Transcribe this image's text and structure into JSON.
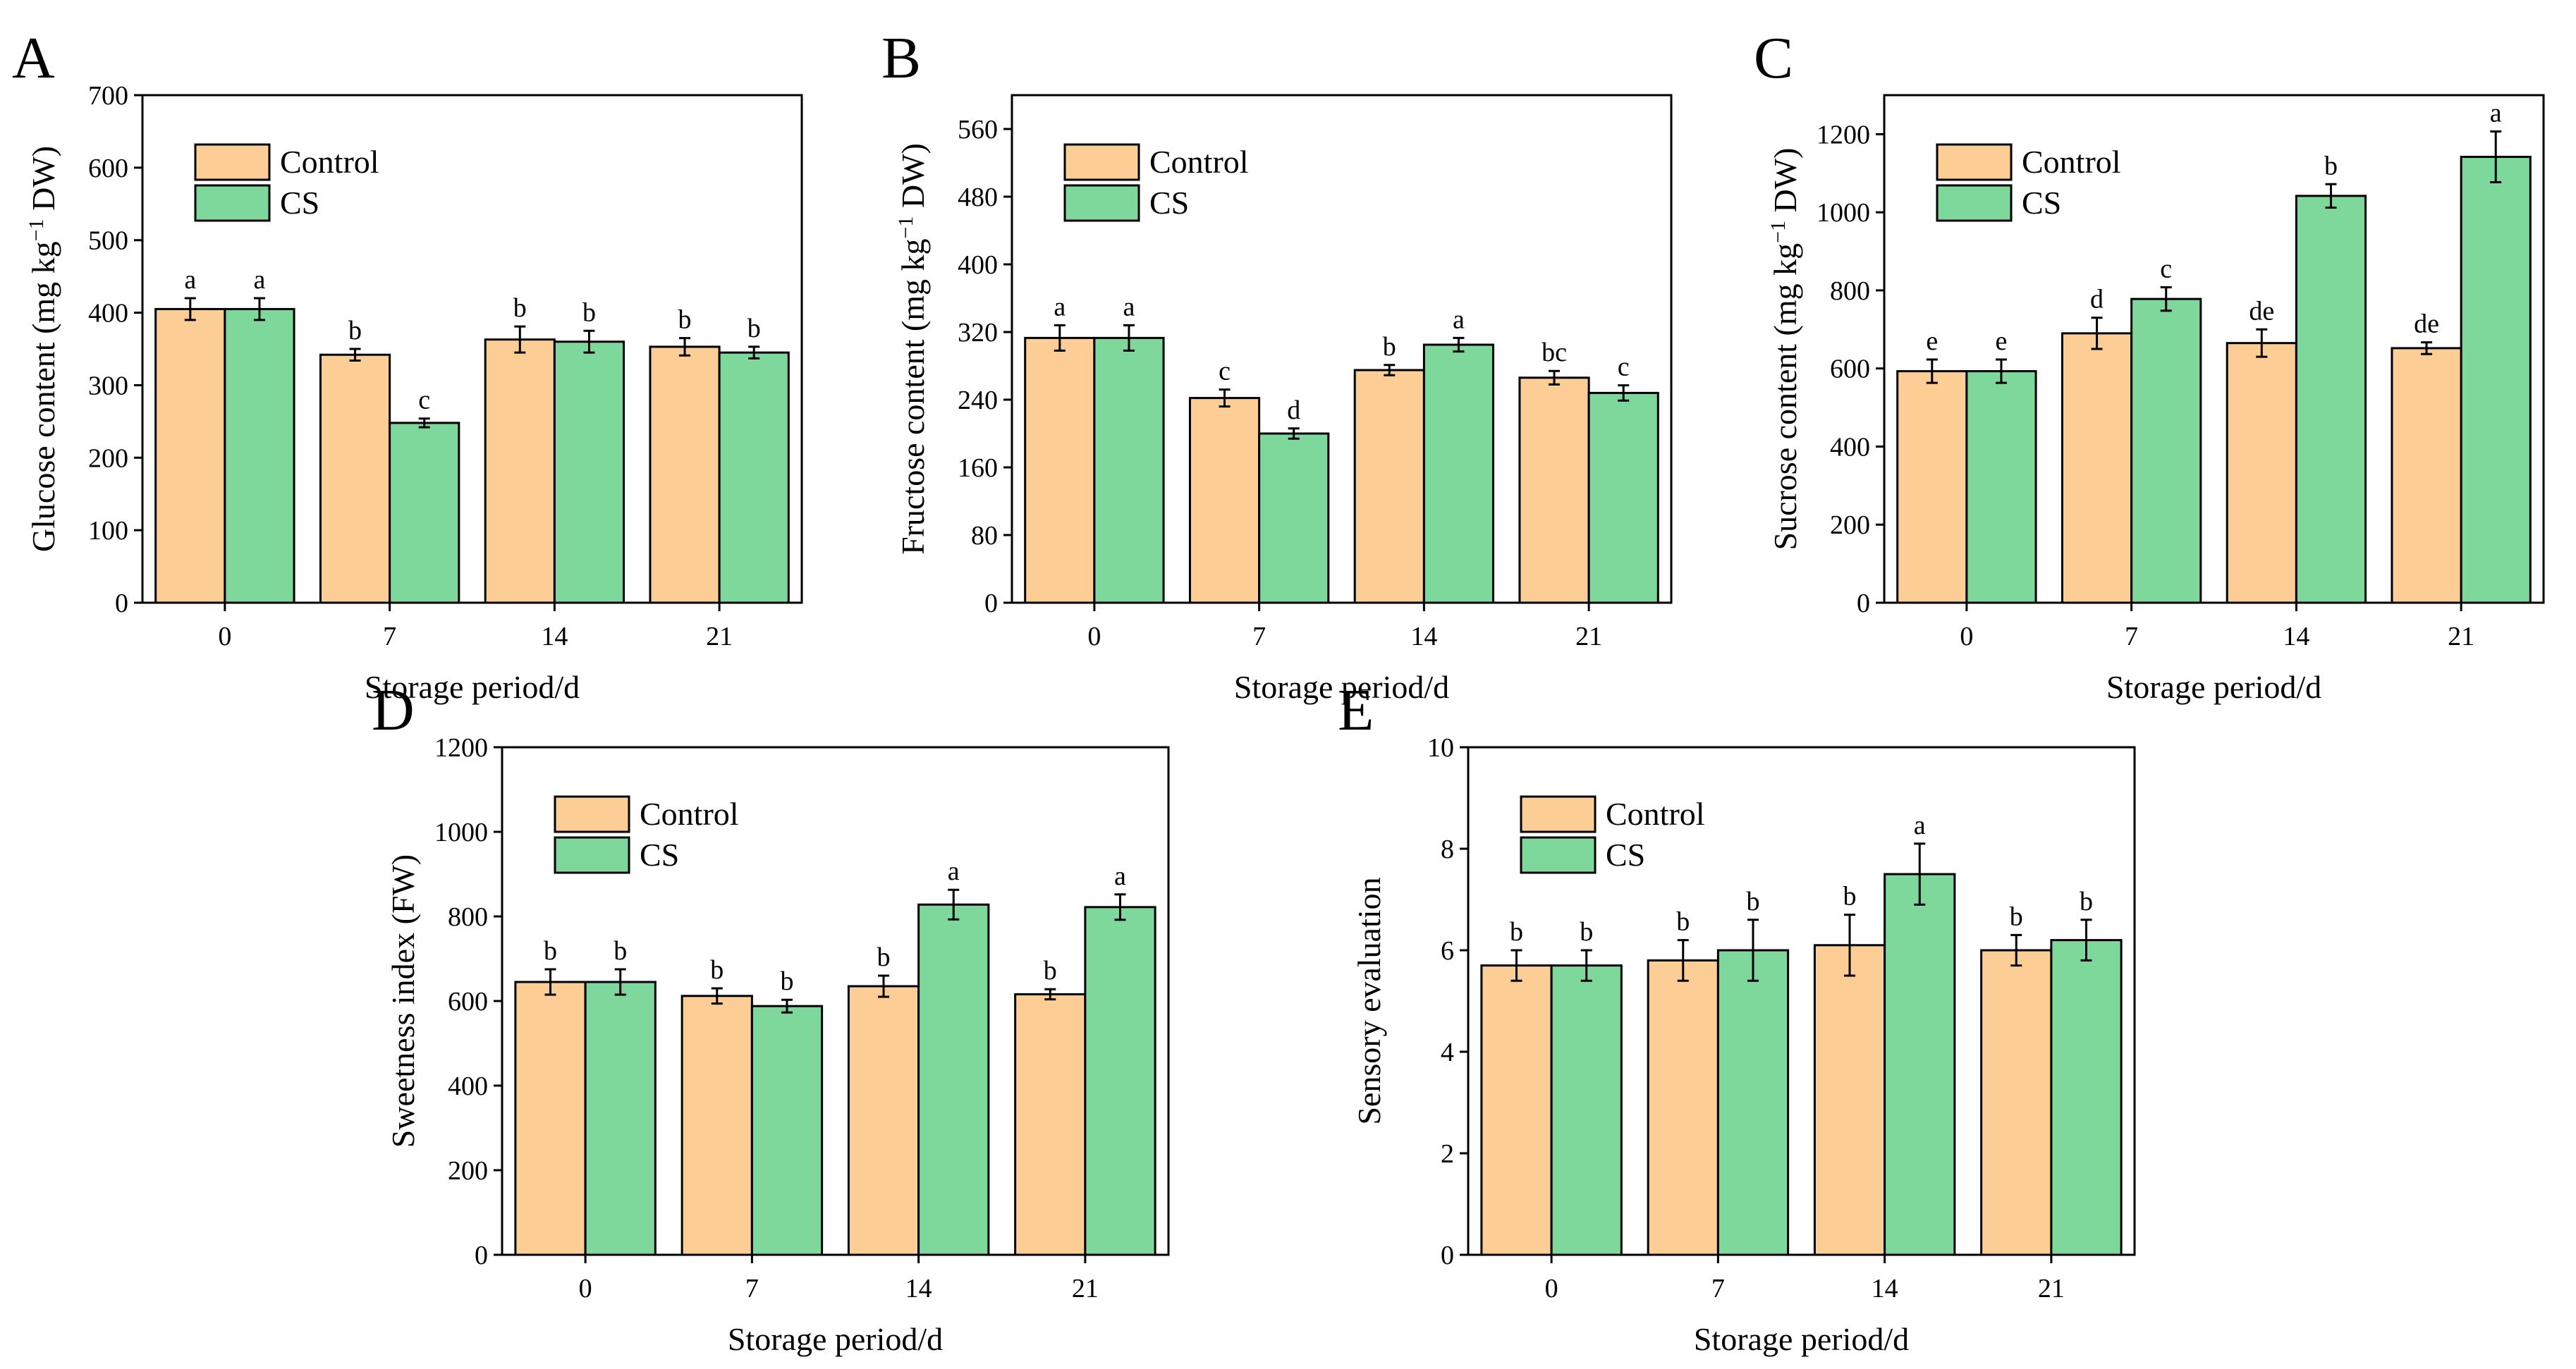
{
  "figure": {
    "series_colors": {
      "Control": "#FDCD96",
      "CS": "#7ED89C"
    },
    "stroke_color": "#000000"
  },
  "chart_data": [
    {
      "panel": "A",
      "type": "bar",
      "xlabel": "Storage period/d",
      "ylabel_prefix": "Glucose content (mg kg",
      "ylabel_sup": "−1",
      "ylabel_suffix": " DW)",
      "categories": [
        "0",
        "7",
        "14",
        "21"
      ],
      "ylim": [
        0,
        700
      ],
      "yticks": [
        0,
        100,
        200,
        300,
        400,
        500,
        600,
        700
      ],
      "legend_position": "top-left",
      "series": [
        {
          "name": "Control",
          "values": [
            405,
            342,
            363,
            353
          ],
          "errors": [
            15,
            8,
            18,
            12
          ],
          "letters": [
            "a",
            "b",
            "b",
            "b"
          ]
        },
        {
          "name": "CS",
          "values": [
            405,
            248,
            360,
            345
          ],
          "errors": [
            15,
            6,
            15,
            8
          ],
          "letters": [
            "a",
            "c",
            "b",
            "b"
          ]
        }
      ]
    },
    {
      "panel": "B",
      "type": "bar",
      "xlabel": "Storage period/d",
      "ylabel_prefix": "Fructose content (mg kg",
      "ylabel_sup": "−1",
      "ylabel_suffix": " DW)",
      "categories": [
        "0",
        "7",
        "14",
        "21"
      ],
      "ylim": [
        0,
        600
      ],
      "yticks": [
        0,
        80,
        160,
        240,
        320,
        400,
        480,
        560
      ],
      "legend_position": "top-left",
      "series": [
        {
          "name": "Control",
          "values": [
            313,
            242,
            275,
            266
          ],
          "errors": [
            15,
            10,
            6,
            8
          ],
          "letters": [
            "a",
            "c",
            "b",
            "bc"
          ]
        },
        {
          "name": "CS",
          "values": [
            313,
            200,
            305,
            248
          ],
          "errors": [
            15,
            6,
            8,
            9
          ],
          "letters": [
            "a",
            "d",
            "a",
            "c"
          ]
        }
      ]
    },
    {
      "panel": "C",
      "type": "bar",
      "xlabel": "Storage period/d",
      "ylabel_prefix": "Sucrose content (mg kg",
      "ylabel_sup": "−1",
      "ylabel_suffix": " DW)",
      "categories": [
        "0",
        "7",
        "14",
        "21"
      ],
      "ylim": [
        0,
        1300
      ],
      "yticks": [
        0,
        200,
        400,
        600,
        800,
        1000,
        1200
      ],
      "legend_position": "top-left",
      "series": [
        {
          "name": "Control",
          "values": [
            593,
            690,
            665,
            652
          ],
          "errors": [
            30,
            40,
            35,
            15
          ],
          "letters": [
            "e",
            "d",
            "de",
            "de"
          ]
        },
        {
          "name": "CS",
          "values": [
            593,
            778,
            1042,
            1142
          ],
          "errors": [
            30,
            30,
            30,
            65
          ],
          "letters": [
            "e",
            "c",
            "b",
            "a"
          ]
        }
      ]
    },
    {
      "panel": "D",
      "type": "bar",
      "xlabel": "Storage period/d",
      "ylabel": "Sweetness index (FW)",
      "categories": [
        "0",
        "7",
        "14",
        "21"
      ],
      "ylim": [
        0,
        1200
      ],
      "yticks": [
        0,
        200,
        400,
        600,
        800,
        1000,
        1200
      ],
      "legend_position": "top-left",
      "series": [
        {
          "name": "Control",
          "values": [
            645,
            612,
            635,
            616
          ],
          "errors": [
            30,
            18,
            25,
            12
          ],
          "letters": [
            "b",
            "b",
            "b",
            "b"
          ]
        },
        {
          "name": "CS",
          "values": [
            645,
            588,
            828,
            822
          ],
          "errors": [
            30,
            15,
            35,
            30
          ],
          "letters": [
            "b",
            "b",
            "a",
            "a"
          ]
        }
      ]
    },
    {
      "panel": "E",
      "type": "bar",
      "xlabel": "Storage period/d",
      "ylabel": "Sensory evaluation",
      "categories": [
        "0",
        "7",
        "14",
        "21"
      ],
      "ylim": [
        0,
        10
      ],
      "yticks": [
        0,
        2,
        4,
        6,
        8,
        10
      ],
      "legend_position": "top-left",
      "series": [
        {
          "name": "Control",
          "values": [
            5.7,
            5.8,
            6.1,
            6.0
          ],
          "errors": [
            0.3,
            0.4,
            0.6,
            0.3
          ],
          "letters": [
            "b",
            "b",
            "b",
            "b"
          ]
        },
        {
          "name": "CS",
          "values": [
            5.7,
            6.0,
            7.5,
            6.2
          ],
          "errors": [
            0.3,
            0.6,
            0.6,
            0.4
          ],
          "letters": [
            "b",
            "b",
            "a",
            "b"
          ]
        }
      ]
    }
  ]
}
